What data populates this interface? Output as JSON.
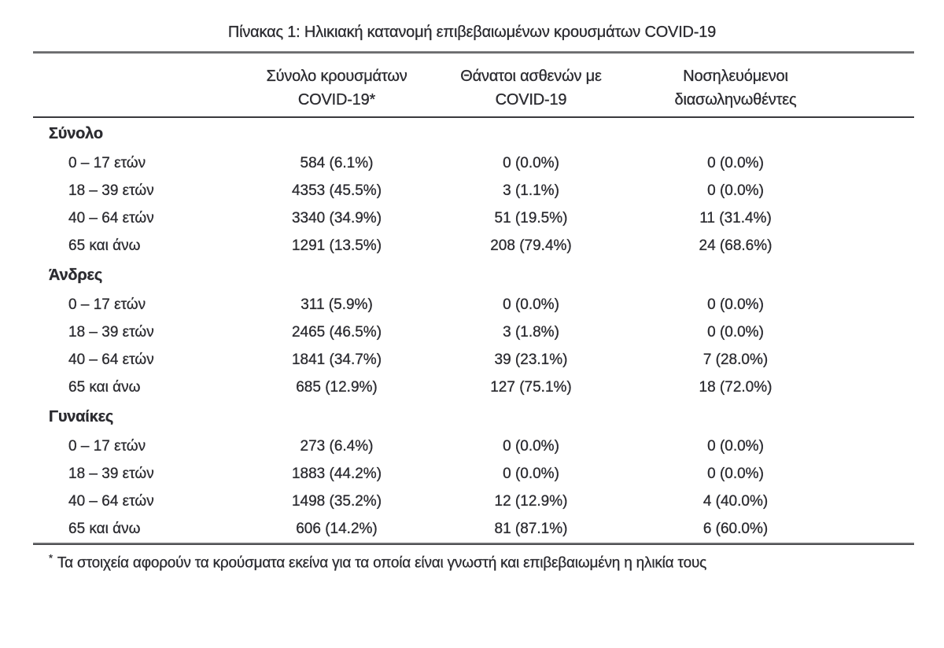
{
  "title": "Πίνακας 1: Ηλικιακή κατανομή επιβεβαιωμένων κρουσμάτων COVID-19",
  "colors": {
    "text": "#2b2b30",
    "rule_top": "#6e6f71",
    "rule_dark": "#39393d",
    "background": "#ffffff"
  },
  "columns": [
    {
      "line1": "Σύνολο κρουσμάτων",
      "line2": "COVID-19*"
    },
    {
      "line1": "Θάνατοι ασθενών με",
      "line2": "COVID-19"
    },
    {
      "line1": "Νοσηλευόμενοι",
      "line2": "διασωληνωθέντες"
    }
  ],
  "sections": [
    {
      "label": "Σύνολο",
      "rows": [
        {
          "cells": [
            "0 – 17 ετών",
            "584 (6.1%)",
            "0 (0.0%)",
            "0 (0.0%)"
          ]
        },
        {
          "cells": [
            "18 – 39 ετών",
            "4353 (45.5%)",
            "3 (1.1%)",
            "0 (0.0%)"
          ]
        },
        {
          "cells": [
            "40 – 64 ετών",
            "3340 (34.9%)",
            "51 (19.5%)",
            "11 (31.4%)"
          ]
        },
        {
          "cells": [
            "65 και άνω",
            "1291 (13.5%)",
            "208 (79.4%)",
            "24 (68.6%)"
          ]
        }
      ]
    },
    {
      "label": "Άνδρες",
      "rows": [
        {
          "cells": [
            "0 – 17 ετών",
            "311 (5.9%)",
            "0 (0.0%)",
            "0 (0.0%)"
          ]
        },
        {
          "cells": [
            "18 – 39 ετών",
            "2465 (46.5%)",
            "3 (1.8%)",
            "0 (0.0%)"
          ]
        },
        {
          "cells": [
            "40 – 64 ετών",
            "1841 (34.7%)",
            "39 (23.1%)",
            "7 (28.0%)"
          ]
        },
        {
          "cells": [
            "65 και άνω",
            "685 (12.9%)",
            "127 (75.1%)",
            "18 (72.0%)"
          ]
        }
      ]
    },
    {
      "label": "Γυναίκες",
      "rows": [
        {
          "cells": [
            "0 – 17 ετών",
            "273 (6.4%)",
            "0 (0.0%)",
            "0 (0.0%)"
          ]
        },
        {
          "cells": [
            "18 – 39 ετών",
            "1883 (44.2%)",
            "0 (0.0%)",
            "0 (0.0%)"
          ]
        },
        {
          "cells": [
            "40 – 64 ετών",
            "1498 (35.2%)",
            "12 (12.9%)",
            "4 (40.0%)"
          ]
        },
        {
          "cells": [
            "65 και άνω",
            "606 (14.2%)",
            "81 (87.1%)",
            "6 (60.0%)"
          ]
        }
      ]
    }
  ],
  "footnote": {
    "marker": "*",
    "text": "Τα στοιχεία αφορούν τα κρούσματα εκείνα για τα οποία είναι γνωστή και επιβεβαιωμένη η ηλικία τους"
  }
}
